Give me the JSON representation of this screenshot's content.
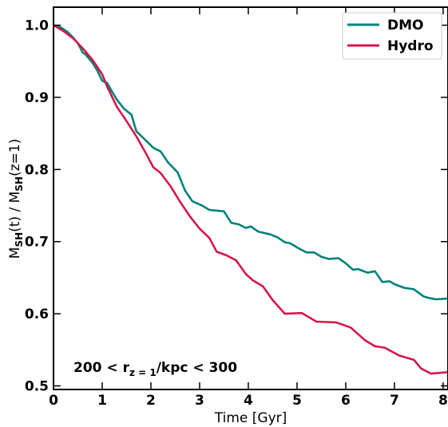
{
  "chart_data": {
    "type": "line",
    "xlabel": "Time [Gyr]",
    "ylabel": {
      "parts": [
        {
          "t": "M",
          "sub": false
        },
        {
          "t": "SH",
          "sub": true
        },
        {
          "t": "(t) / M",
          "sub": false
        },
        {
          "t": "SH",
          "sub": true
        },
        {
          "t": "(z=1)",
          "sub": false
        }
      ]
    },
    "xlim": [
      0,
      8.1
    ],
    "ylim": [
      0.495,
      1.025
    ],
    "xticks": [
      0,
      1,
      2,
      3,
      4,
      5,
      6,
      7,
      8
    ],
    "yticks": [
      0.5,
      0.6,
      0.7,
      0.8,
      0.9,
      1.0
    ],
    "ytick_labels": [
      "0.5",
      "0.6",
      "0.7",
      "0.8",
      "0.9",
      "1.0"
    ],
    "legend_position": "top-right",
    "annotation": {
      "pre": "200 < r",
      "sub": "z = 1",
      "post": "/kpc < 300"
    },
    "series": [
      {
        "name": "DMO",
        "color": "#00827a",
        "x": [
          0,
          0.15,
          0.3,
          0.4,
          0.5,
          0.6,
          0.65,
          0.8,
          0.9,
          1.0,
          1.1,
          1.2,
          1.3,
          1.45,
          1.6,
          1.7,
          1.9,
          2.05,
          2.2,
          2.35,
          2.55,
          2.7,
          2.85,
          3.05,
          3.2,
          3.35,
          3.5,
          3.65,
          3.8,
          3.95,
          4.05,
          4.2,
          4.45,
          4.6,
          4.75,
          4.85,
          5.05,
          5.2,
          5.35,
          5.5,
          5.65,
          5.85,
          6.0,
          6.15,
          6.25,
          6.45,
          6.6,
          6.75,
          6.9,
          7.0,
          7.2,
          7.4,
          7.6,
          7.7,
          7.85,
          8.1
        ],
        "y": [
          1.0,
          0.997,
          0.99,
          0.983,
          0.975,
          0.962,
          0.96,
          0.948,
          0.937,
          0.923,
          0.92,
          0.908,
          0.897,
          0.884,
          0.876,
          0.853,
          0.84,
          0.83,
          0.825,
          0.81,
          0.796,
          0.771,
          0.756,
          0.75,
          0.744,
          0.743,
          0.742,
          0.726,
          0.724,
          0.719,
          0.721,
          0.714,
          0.71,
          0.706,
          0.699,
          0.698,
          0.69,
          0.685,
          0.685,
          0.679,
          0.676,
          0.677,
          0.67,
          0.661,
          0.662,
          0.657,
          0.659,
          0.644,
          0.645,
          0.641,
          0.636,
          0.634,
          0.624,
          0.622,
          0.62,
          0.621
        ]
      },
      {
        "name": "Hydro",
        "color": "#d6164a",
        "x": [
          0,
          0.2,
          0.4,
          0.6,
          0.8,
          1.0,
          1.1,
          1.3,
          1.5,
          1.7,
          1.9,
          2.05,
          2.2,
          2.4,
          2.6,
          2.8,
          3.0,
          3.2,
          3.35,
          3.55,
          3.75,
          3.95,
          4.1,
          4.3,
          4.5,
          4.75,
          5.1,
          5.4,
          5.8,
          6.1,
          6.4,
          6.6,
          6.8,
          7.1,
          7.4,
          7.55,
          7.75,
          8.1
        ],
        "y": [
          1.0,
          0.992,
          0.982,
          0.968,
          0.952,
          0.932,
          0.915,
          0.887,
          0.867,
          0.846,
          0.822,
          0.803,
          0.795,
          0.777,
          0.755,
          0.735,
          0.718,
          0.705,
          0.686,
          0.681,
          0.674,
          0.655,
          0.646,
          0.638,
          0.619,
          0.6,
          0.601,
          0.589,
          0.588,
          0.581,
          0.563,
          0.555,
          0.553,
          0.542,
          0.536,
          0.524,
          0.517,
          0.519
        ]
      }
    ]
  }
}
